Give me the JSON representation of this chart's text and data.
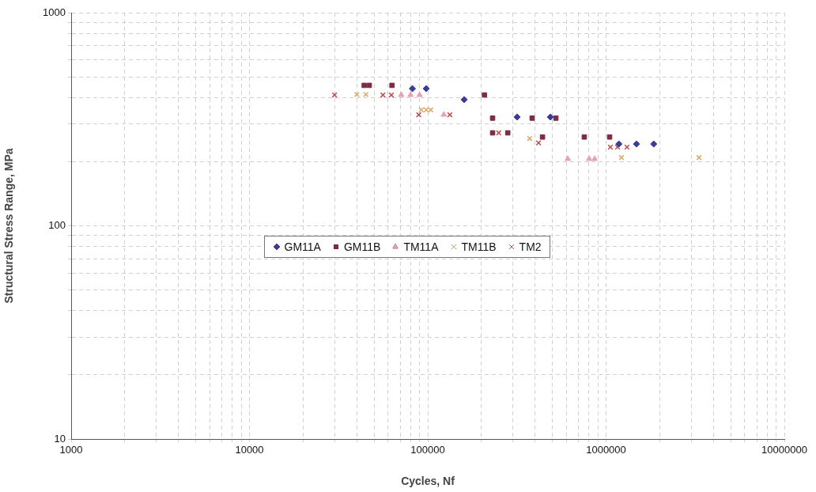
{
  "chart_data": {
    "type": "scatter",
    "xlabel": "Cycles, Nf",
    "ylabel": "Structural Stress Range, MPa",
    "log": "xy",
    "grid": true,
    "legend": "left",
    "xlim": [
      1000,
      10000000
    ],
    "ylim": [
      10,
      1000
    ],
    "xticks": [
      1000,
      {
        "value": 2000,
        "label": null
      },
      {
        "value": 3000,
        "label": null
      },
      {
        "value": 4000,
        "label": null
      },
      {
        "value": 5000,
        "label": null
      },
      {
        "value": 6000,
        "label": null
      },
      {
        "value": 7000,
        "label": null
      },
      {
        "value": 8000,
        "label": null
      },
      {
        "value": 9000,
        "label": null
      },
      10000,
      {
        "value": 20000,
        "label": null
      },
      {
        "value": 30000,
        "label": null
      },
      {
        "value": 40000,
        "label": null
      },
      {
        "value": 50000,
        "label": null
      },
      {
        "value": 60000,
        "label": null
      },
      {
        "value": 70000,
        "label": null
      },
      {
        "value": 80000,
        "label": null
      },
      {
        "value": 90000,
        "label": null
      },
      100000,
      {
        "value": 200000,
        "label": null
      },
      {
        "value": 300000,
        "label": null
      },
      {
        "value": 400000,
        "label": null
      },
      {
        "value": 500000,
        "label": null
      },
      {
        "value": 600000,
        "label": null
      },
      {
        "value": 700000,
        "label": null
      },
      {
        "value": 800000,
        "label": null
      },
      {
        "value": 900000,
        "label": null
      },
      1000000,
      {
        "value": 2000000,
        "label": null
      },
      {
        "value": 3000000,
        "label": null
      },
      {
        "value": 4000000,
        "label": null
      },
      {
        "value": 5000000,
        "label": null
      },
      {
        "value": 6000000,
        "label": null
      },
      {
        "value": 7000000,
        "label": null
      },
      {
        "value": 8000000,
        "label": null
      },
      {
        "value": 9000000,
        "label": null
      },
      10000000
    ],
    "yticks": [
      10,
      {
        "value": 20,
        "label": null
      },
      {
        "value": 30,
        "label": null
      },
      {
        "value": 40,
        "label": null
      },
      {
        "value": 50,
        "label": null
      },
      {
        "value": 60,
        "label": null
      },
      {
        "value": 70,
        "label": null
      },
      {
        "value": 80,
        "label": null
      },
      {
        "value": 90,
        "label": null
      },
      100,
      {
        "value": 200,
        "label": null
      },
      {
        "value": 300,
        "label": null
      },
      {
        "value": 400,
        "label": null
      },
      {
        "value": 500,
        "label": null
      },
      {
        "value": 600,
        "label": null
      },
      {
        "value": 700,
        "label": null
      },
      {
        "value": 800,
        "label": null
      },
      {
        "value": 900,
        "label": null
      },
      1000
    ],
    "series": [
      {
        "name": "GM11A",
        "color": "#3b3b9a",
        "marker": "diamond",
        "x": [
          82000,
          98000,
          160000,
          317000,
          487000,
          1180000,
          1480000,
          1850000
        ],
        "values": [
          440,
          440,
          391,
          324,
          324,
          242,
          242,
          242
        ]
      },
      {
        "name": "GM11B",
        "color": "#7a2c48",
        "marker": "square",
        "x": [
          44000,
          47000,
          63000,
          208000,
          231000,
          385000,
          523000,
          231000,
          281000,
          440000,
          755000,
          1047000
        ],
        "values": [
          456,
          456,
          456,
          411,
          320,
          320,
          320,
          273,
          273,
          261,
          261,
          261
        ]
      },
      {
        "name": "TM11A",
        "color": "#e8a0b8",
        "marker": "triangle",
        "x": [
          71000,
          80000,
          90000,
          123000,
          610000,
          804000,
          863000
        ],
        "values": [
          411,
          411,
          411,
          332,
          206,
          206,
          206
        ]
      },
      {
        "name": "TM11B",
        "color": "#d9a865",
        "marker": "cross",
        "x": [
          40000,
          45000,
          92000,
          98000,
          104000,
          373000,
          1220000,
          3320000
        ],
        "values": [
          413,
          413,
          350,
          350,
          350,
          257,
          209,
          209
        ]
      },
      {
        "name": "TM2",
        "color": "#c04a4a",
        "marker": "cross",
        "x": [
          30000,
          56000,
          62500,
          89000,
          133000,
          250000,
          418000,
          1057000,
          1160000,
          1310000
        ],
        "values": [
          411,
          411,
          411,
          332,
          332,
          273,
          245,
          234,
          234,
          234
        ]
      }
    ]
  }
}
